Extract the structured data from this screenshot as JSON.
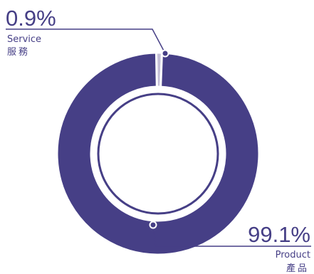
{
  "chart_data": {
    "type": "pie",
    "variant": "donut",
    "slices": [
      {
        "label_en": "Service",
        "label_zh": "服務",
        "value": 0.9,
        "display": "0.9%",
        "color": "#c4bfd6"
      },
      {
        "label_en": "Product",
        "label_zh": "產品",
        "value": 99.1,
        "display": "99.1%",
        "color": "#463f86"
      }
    ],
    "colors": {
      "primary": "#463f86",
      "secondary": "#c4bfd6",
      "background": "#ffffff"
    }
  }
}
